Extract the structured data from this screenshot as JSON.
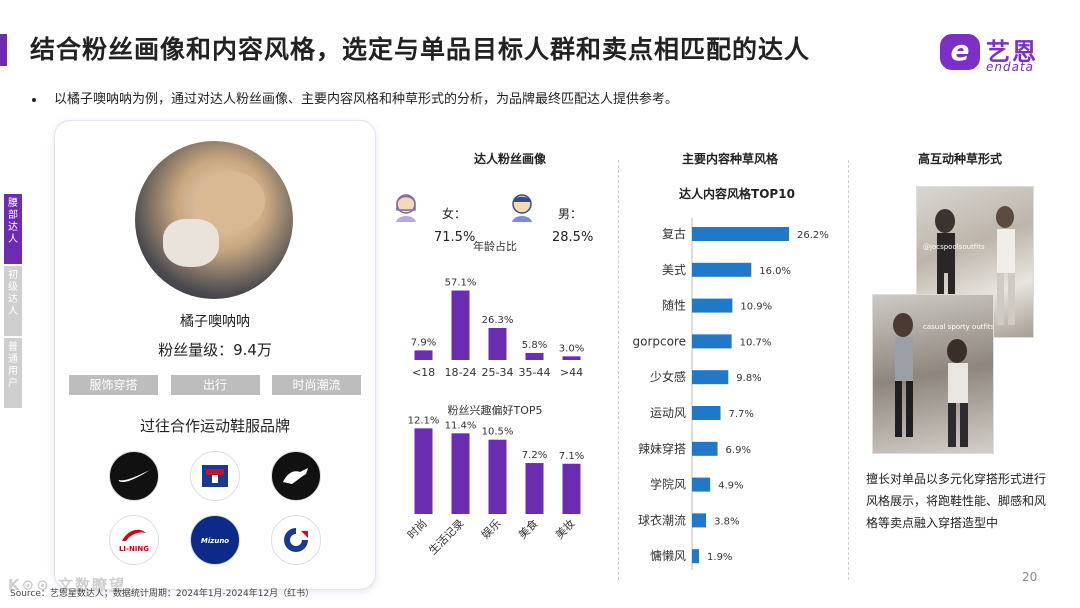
{
  "header": {
    "title": "结合粉丝画像和内容风格，选定与单品目标人群和卖点相匹配的达人",
    "bullet": "以橘子噢呐呐为例，通过对达人粉丝画像、主要内容风格和种草形式的分析，为品牌最终匹配达人提供参考。"
  },
  "logo": {
    "mark": "e",
    "cn": "艺恩",
    "en": "endata"
  },
  "side_tabs": [
    {
      "label": "腰部达人",
      "active": true
    },
    {
      "label": "初级达人",
      "active": false
    },
    {
      "label": "普通用户",
      "active": false
    }
  ],
  "profile": {
    "name": "橘子噢呐呐",
    "fans": "粉丝量级：9.4万",
    "tags": [
      "服饰穿搭",
      "出行",
      "时尚潮流"
    ],
    "brands_title": "过往合作运动鞋服品牌",
    "brands": [
      {
        "name": "NIKE",
        "icon": "nike-swoosh-icon",
        "bg": "#111111",
        "fg": "#ffffff"
      },
      {
        "name": "FILA",
        "icon": "fila-logo-icon",
        "bg": "#ffffff",
        "fg": "#c8102e"
      },
      {
        "name": "PUMA",
        "icon": "puma-logo-icon",
        "bg": "#111111",
        "fg": "#ffffff"
      },
      {
        "name": "LI-NING",
        "icon": "lining-logo-icon",
        "bg": "#ffffff",
        "fg": "#d7000f"
      },
      {
        "name": "Mizuno",
        "icon": "mizuno-logo-icon",
        "bg": "#0b2a8a",
        "fg": "#ffffff"
      },
      {
        "name": "Champion",
        "icon": "champion-logo-icon",
        "bg": "#ffffff",
        "fg": "#1a3a8f"
      }
    ]
  },
  "fan_profile": {
    "section_title": "达人粉丝画像",
    "female_label": "女：",
    "female_value": "71.5%",
    "male_label": "男：",
    "male_value": "28.5%"
  },
  "colors": {
    "accent": "#6c2bb0",
    "bar_purple": "#6a2db0",
    "bar_blue": "#1f78c8"
  },
  "chart_data": [
    {
      "type": "bar",
      "title": "年龄占比",
      "categories": [
        "<18",
        "18-24",
        "25-34",
        "35-44",
        ">44"
      ],
      "values": [
        7.9,
        57.1,
        26.3,
        5.8,
        3.0
      ],
      "value_labels": [
        "7.9%",
        "57.1%",
        "26.3%",
        "5.8%",
        "3.0%"
      ],
      "ylim": [
        0,
        60
      ]
    },
    {
      "type": "bar",
      "title": "粉丝兴趣偏好TOP5",
      "categories": [
        "时尚",
        "生活记录",
        "娱乐",
        "美食",
        "美妆"
      ],
      "values": [
        12.1,
        11.4,
        10.5,
        7.2,
        7.1
      ],
      "value_labels": [
        "12.1%",
        "11.4%",
        "10.5%",
        "7.2%",
        "7.1%"
      ],
      "ylim": [
        0,
        13
      ]
    },
    {
      "type": "bar",
      "orientation": "horizontal",
      "section_title": "主要内容种草风格",
      "title": "达人内容风格TOP10",
      "categories": [
        "复古",
        "美式",
        "随性",
        "gorpcore",
        "少女感",
        "运动风",
        "辣妹穿搭",
        "学院风",
        "球衣潮流",
        "慵懒风"
      ],
      "values": [
        26.2,
        16.0,
        10.9,
        10.7,
        9.8,
        7.7,
        6.9,
        4.9,
        3.8,
        1.9
      ],
      "value_labels": [
        "26.2%",
        "16.0%",
        "10.9%",
        "10.7%",
        "9.8%",
        "7.7%",
        "6.9%",
        "4.9%",
        "3.8%",
        "1.9%"
      ],
      "xlim": [
        0,
        27
      ]
    }
  ],
  "interaction": {
    "section_title": "高互动种草形式",
    "caption": "擅长对单品以多元化穿搭形式进行风格展示，将跑鞋性能、脚感和风格等卖点融入穿搭造型中",
    "photo_overlays": [
      "@jocspoolsoutfits",
      "casual sporty outfits"
    ]
  },
  "footer": {
    "page": "20",
    "source": "Source：艺恩星数达人；数据统计周期：2024年1月-2024年12月（红书）",
    "watermark": "K⊙⊙ 文数瞭望"
  }
}
